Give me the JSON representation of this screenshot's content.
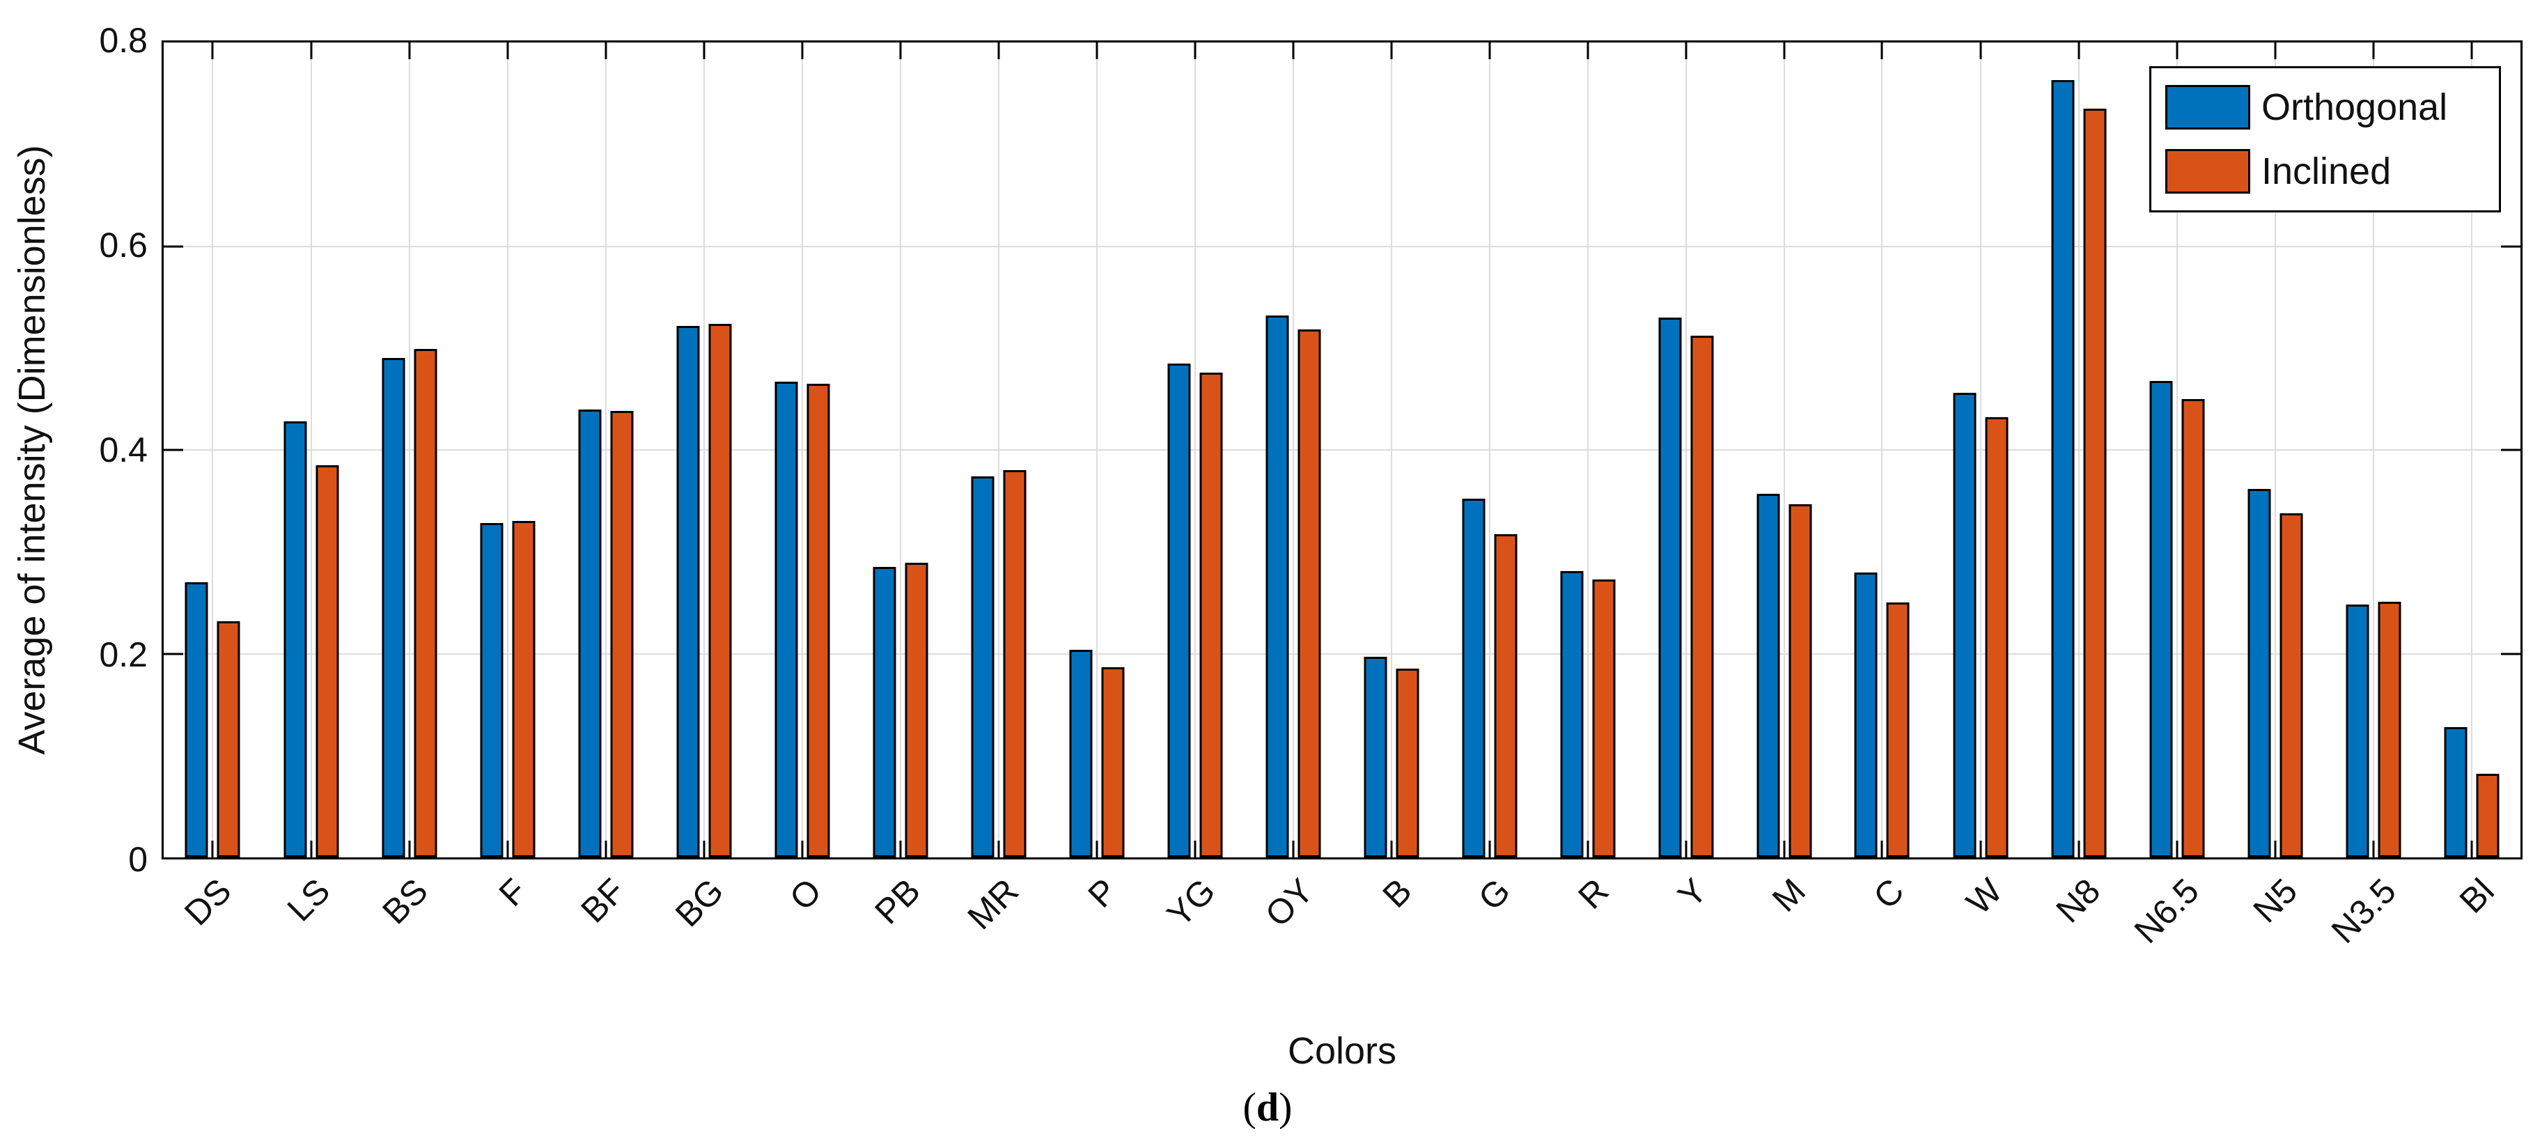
{
  "figure": {
    "caption": {
      "open": "(",
      "letter": "d",
      "close": ")"
    }
  },
  "chart_data": {
    "type": "bar",
    "title": "",
    "xlabel": "Colors",
    "ylabel": "Average of intensity (Dimensionless)",
    "ylim": [
      0,
      0.8
    ],
    "yticks": [
      0,
      0.2,
      0.4,
      0.6,
      0.8
    ],
    "grid": true,
    "legend_position": "top-right",
    "categories": [
      "DS",
      "LS",
      "BS",
      "F",
      "BF",
      "BG",
      "O",
      "PB",
      "MR",
      "P",
      "YG",
      "OY",
      "B",
      "G",
      "R",
      "Y",
      "M",
      "C",
      "W",
      "N8",
      "N6.5",
      "N5",
      "N3.5",
      "Bl"
    ],
    "series": [
      {
        "name": "Orthogonal",
        "color": "#0072BD",
        "values": [
          0.27,
          0.428,
          0.49,
          0.328,
          0.44,
          0.522,
          0.467,
          0.285,
          0.374,
          0.204,
          0.485,
          0.532,
          0.197,
          0.352,
          0.281,
          0.53,
          0.357,
          0.28,
          0.456,
          0.763,
          0.468,
          0.362,
          0.248,
          0.128
        ]
      },
      {
        "name": "Inclined",
        "color": "#D95319",
        "values": [
          0.232,
          0.385,
          0.499,
          0.33,
          0.438,
          0.524,
          0.465,
          0.289,
          0.38,
          0.187,
          0.476,
          0.518,
          0.185,
          0.317,
          0.273,
          0.512,
          0.347,
          0.25,
          0.432,
          0.735,
          0.45,
          0.338,
          0.251,
          0.082
        ]
      }
    ],
    "bar_edge_color": "#000000",
    "grid_color": "#DCDCDC",
    "axis_color": "#111111"
  }
}
